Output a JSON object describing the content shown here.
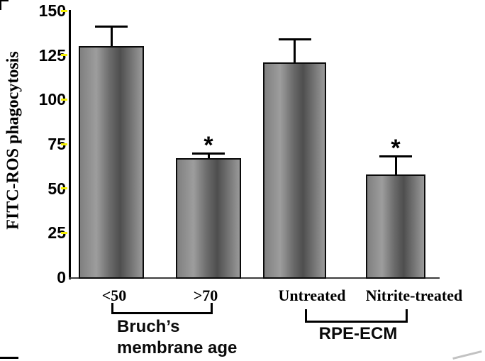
{
  "figure": {
    "background": "#ffffff"
  },
  "chart_data": {
    "type": "bar",
    "title": "",
    "xlabel": "",
    "ylabel": "FITC-ROS phagocytosis",
    "ylim": [
      0,
      150
    ],
    "yticks": [
      0,
      25,
      50,
      75,
      100,
      125,
      150
    ],
    "grid": false,
    "legend": false,
    "bar_fill_description": "gray vertical bars with horizontal light-dark-light gradient and black outline",
    "tick_mark_color": "#f5f000",
    "axis_color": "#000000",
    "categories": [
      "<50",
      ">70",
      "Untreated",
      "Nitrite-treated"
    ],
    "values": [
      130,
      67,
      121,
      58
    ],
    "errors_plus": [
      11,
      2.5,
      13,
      10
    ],
    "significance": [
      false,
      true,
      false,
      true
    ],
    "significance_marker": "*",
    "groups": [
      {
        "label_lines": [
          "Bruch’s",
          "membrane age"
        ],
        "categories": [
          "<50",
          ">70"
        ]
      },
      {
        "label_lines": [
          "RPE-ECM"
        ],
        "categories": [
          "Untreated",
          "Nitrite-treated"
        ]
      }
    ]
  }
}
